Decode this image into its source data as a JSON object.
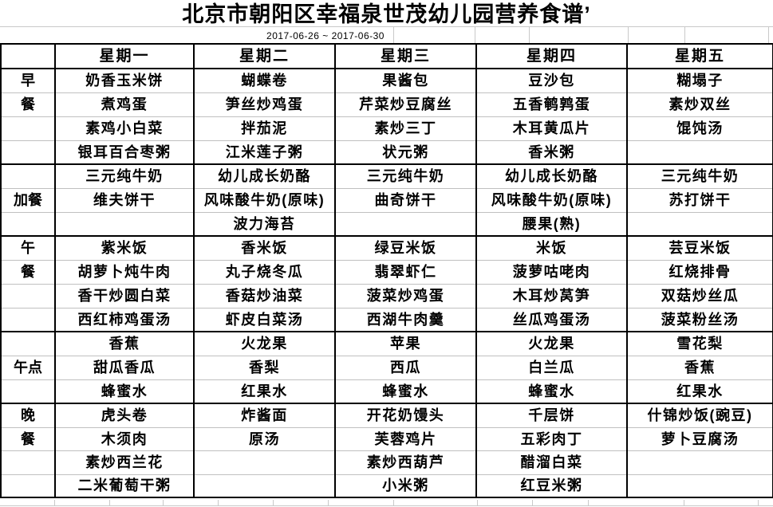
{
  "sheet": {
    "title": "北京市朝阳区幸福泉世茂幼儿园营养食谱’",
    "date_range": "2017-06-26 ~ 2017-06-30"
  },
  "menu_table": {
    "corner_label": "",
    "day_headers": [
      "星期一",
      "星期二",
      "星期三",
      "星期四",
      "星期五"
    ],
    "meal_blocks": [
      {
        "label": "早餐",
        "label_layout": "stacked",
        "rows": [
          [
            "奶香玉米饼",
            "蝴蝶卷",
            "果酱包",
            "豆沙包",
            "糊塌子"
          ],
          [
            "煮鸡蛋",
            "笋丝炒鸡蛋",
            "芹菜炒豆腐丝",
            "五香鹌鹑蛋",
            "素炒双丝"
          ],
          [
            "素鸡小白菜",
            "拌茄泥",
            "素炒三丁",
            "木耳黄瓜片",
            "馄饨汤"
          ],
          [
            "银耳百合枣粥",
            "江米莲子粥",
            "状元粥",
            "香米粥",
            ""
          ]
        ]
      },
      {
        "label": "加餐",
        "label_layout": "centered",
        "rows": [
          [
            "三元纯牛奶",
            "幼儿成长奶酪",
            "三元纯牛奶",
            "幼儿成长奶酪",
            "三元纯牛奶"
          ],
          [
            "维夫饼干",
            "风味酸牛奶(原味)",
            "曲奇饼干",
            "风味酸牛奶(原味)",
            "苏打饼干"
          ],
          [
            "",
            "波力海苔",
            "",
            "腰果(熟)",
            ""
          ]
        ]
      },
      {
        "label": "午餐",
        "label_layout": "stacked",
        "rows": [
          [
            "紫米饭",
            "香米饭",
            "绿豆米饭",
            "米饭",
            "芸豆米饭"
          ],
          [
            "胡萝卜炖牛肉",
            "丸子烧冬瓜",
            "翡翠虾仁",
            "菠萝咕咾肉",
            "红烧排骨"
          ],
          [
            "香干炒圆白菜",
            "香菇炒油菜",
            "菠菜炒鸡蛋",
            "木耳炒莴笋",
            "双菇炒丝瓜"
          ],
          [
            "西红柿鸡蛋汤",
            "虾皮白菜汤",
            "西湖牛肉羹",
            "丝瓜鸡蛋汤",
            "菠菜粉丝汤"
          ]
        ]
      },
      {
        "label": "午点",
        "label_layout": "centered",
        "rows": [
          [
            "香蕉",
            "火龙果",
            "苹果",
            "火龙果",
            "雪花梨"
          ],
          [
            "甜瓜香瓜",
            "香梨",
            "西瓜",
            "白兰瓜",
            "香蕉"
          ],
          [
            "蜂蜜水",
            "红果水",
            "蜂蜜水",
            "蜂蜜水",
            "红果水"
          ]
        ]
      },
      {
        "label": "晚餐",
        "label_layout": "stacked",
        "rows": [
          [
            "虎头卷",
            "炸酱面",
            "开花奶馒头",
            "千层饼",
            "什锦炒饭(豌豆)"
          ],
          [
            "木须肉",
            "原汤",
            "芙蓉鸡片",
            "五彩肉丁",
            "萝卜豆腐汤"
          ],
          [
            "素炒西兰花",
            "",
            "素炒西葫芦",
            "醋溜白菜",
            ""
          ],
          [
            "二米葡萄干粥",
            "",
            "小米粥",
            "红豆米粥",
            ""
          ]
        ]
      }
    ]
  }
}
